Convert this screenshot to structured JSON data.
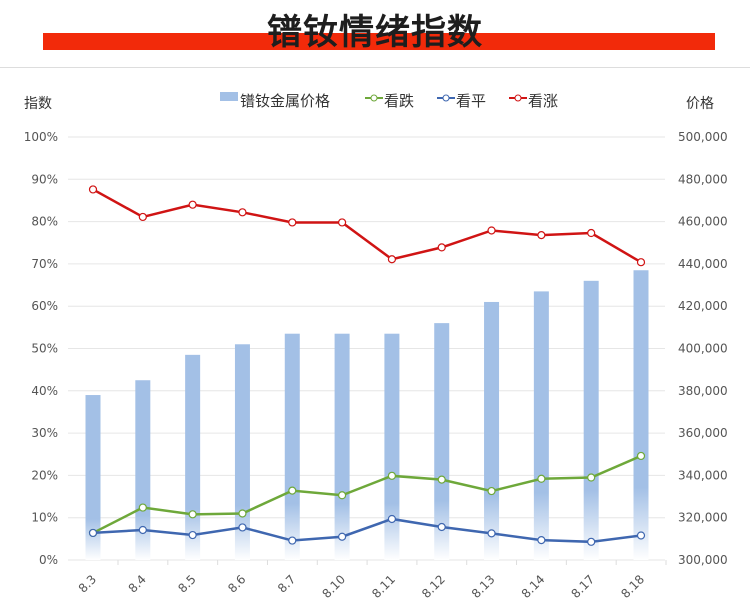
{
  "title": "镨钕情绪指数",
  "colors": {
    "title_bar": "#f22a0a",
    "bar": "#a3c0e6",
    "green": "#6ea83a",
    "blue": "#3f67b0",
    "red": "#d01414",
    "grid": "#e6e6e6"
  },
  "chart_data": {
    "type": "bar+line",
    "categories": [
      "8.3",
      "8.4",
      "8.5",
      "8.6",
      "8.7",
      "8.10",
      "8.11",
      "8.12",
      "8.13",
      "8.14",
      "8.17",
      "8.18"
    ],
    "left_axis": {
      "label": "指数",
      "range": [
        0,
        100
      ],
      "unit": "%",
      "ticks": [
        "0%",
        "10%",
        "20%",
        "30%",
        "40%",
        "50%",
        "60%",
        "70%",
        "80%",
        "90%",
        "100%"
      ]
    },
    "right_axis": {
      "label": "价格",
      "range": [
        300000,
        500000
      ],
      "ticks": [
        "300,000",
        "320,000",
        "340,000",
        "360,000",
        "380,000",
        "400,000",
        "420,000",
        "440,000",
        "460,000",
        "480,000",
        "500,000"
      ]
    },
    "grid": true,
    "legend_position": "top",
    "series": [
      {
        "name": "镨钕金属价格",
        "type": "bar",
        "axis": "right",
        "values": [
          378000,
          385000,
          397000,
          402000,
          407000,
          407000,
          407000,
          412000,
          422000,
          427000,
          432000,
          437000
        ]
      },
      {
        "name": "看跌",
        "type": "line",
        "axis": "left",
        "values": [
          6.4,
          12.4,
          10.8,
          11.0,
          16.4,
          15.3,
          19.9,
          19.0,
          16.3,
          19.2,
          19.5,
          24.6
        ]
      },
      {
        "name": "看平",
        "type": "line",
        "axis": "left",
        "values": [
          6.4,
          7.1,
          5.9,
          7.7,
          4.6,
          5.5,
          9.7,
          7.8,
          6.3,
          4.7,
          4.3,
          5.8
        ]
      },
      {
        "name": "看涨",
        "type": "line",
        "axis": "left",
        "values": [
          87.6,
          81.1,
          84.0,
          82.2,
          79.8,
          79.8,
          71.1,
          73.9,
          77.9,
          76.8,
          77.3,
          70.4
        ]
      }
    ]
  }
}
